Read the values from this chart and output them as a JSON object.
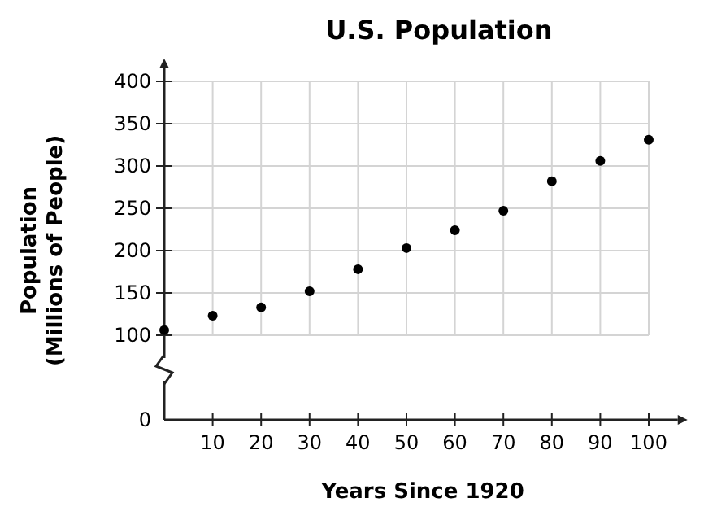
{
  "chart_data": {
    "type": "scatter",
    "title": "U.S. Population",
    "xlabel": "Years Since 1920",
    "ylabel": "Population\n(Millions of People)",
    "x": [
      0,
      10,
      20,
      30,
      40,
      50,
      60,
      70,
      80,
      90,
      100
    ],
    "series": [
      {
        "color": "#000000",
        "values": [
          106,
          123,
          133,
          152,
          178,
          203,
          224,
          247,
          282,
          306,
          331
        ]
      }
    ],
    "xlim": [
      0,
      106
    ],
    "xticks": [
      10,
      20,
      30,
      40,
      50,
      60,
      70,
      80,
      90,
      100
    ],
    "ylim": [
      0,
      400
    ],
    "yticks": [
      0,
      100,
      150,
      200,
      250,
      300,
      350,
      400
    ],
    "grid": true,
    "marker": "circle"
  }
}
